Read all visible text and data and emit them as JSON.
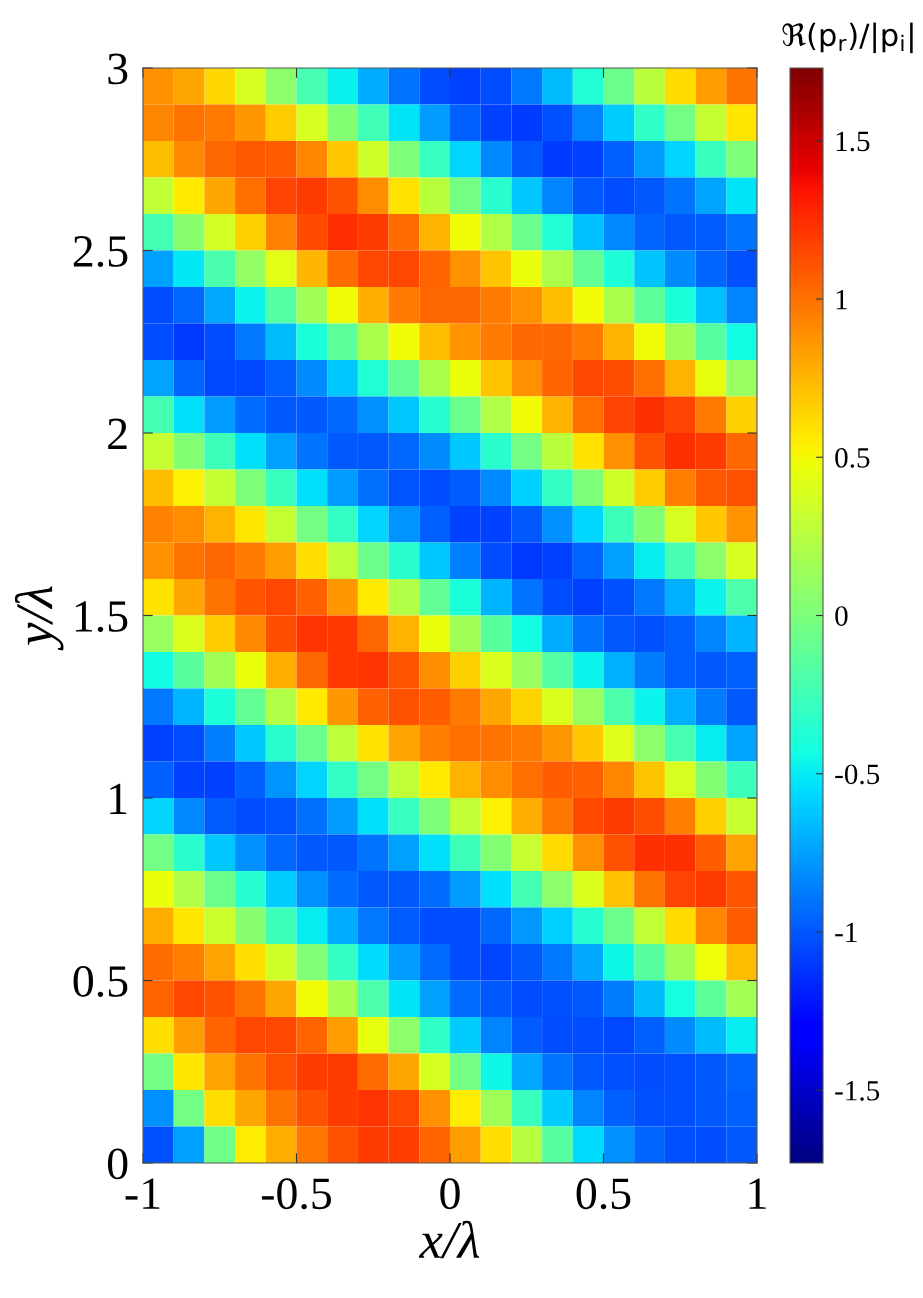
{
  "chart_data": {
    "type": "heatmap",
    "xlabel": "x/λ",
    "ylabel": "y/λ",
    "clabel": "ℜ(p$_{r}$)/|p$_{i}$|",
    "x": [
      -0.95,
      -0.85,
      -0.75,
      -0.65,
      -0.55,
      -0.45,
      -0.35,
      -0.25,
      -0.15,
      -0.05,
      0.05,
      0.15,
      0.25,
      0.35,
      0.45,
      0.55,
      0.65,
      0.75,
      0.85,
      0.95
    ],
    "y": [
      2.95,
      2.85,
      2.75,
      2.65,
      2.55,
      2.45,
      2.35,
      2.25,
      2.15,
      2.05,
      1.95,
      1.85,
      1.75,
      1.65,
      1.55,
      1.45,
      1.35,
      1.25,
      1.15,
      1.05,
      0.95,
      0.85,
      0.75,
      0.65,
      0.55,
      0.45,
      0.35,
      0.25,
      0.15,
      0.05
    ],
    "cells": [
      [
        0.89,
        0.8,
        0.63,
        0.38,
        0.08,
        -0.22,
        -0.48,
        -0.71,
        -0.9,
        -1.03,
        -1.08,
        -1.03,
        -0.88,
        -0.65,
        -0.37,
        -0.07,
        0.27,
        0.61,
        0.85,
        0.99
      ],
      [
        0.93,
        0.99,
        0.97,
        0.86,
        0.67,
        0.39,
        0.04,
        -0.25,
        -0.52,
        -0.77,
        -0.97,
        -1.08,
        -1.09,
        -1.02,
        -0.84,
        -0.6,
        -0.32,
        -0.03,
        0.3,
        0.58
      ],
      [
        0.72,
        0.91,
        1.04,
        1.09,
        1.08,
        0.92,
        0.68,
        0.35,
        0.0,
        -0.29,
        -0.58,
        -0.83,
        -1.0,
        -1.09,
        -1.07,
        -0.96,
        -0.77,
        -0.57,
        -0.28,
        0.0
      ],
      [
        0.29,
        0.56,
        0.81,
        1.01,
        1.17,
        1.2,
        1.12,
        0.9,
        0.59,
        0.27,
        -0.03,
        -0.34,
        -0.62,
        -0.85,
        -1.0,
        -1.04,
        -1.0,
        -0.9,
        -0.74,
        -0.52
      ],
      [
        -0.24,
        0.06,
        0.36,
        0.65,
        0.94,
        1.14,
        1.25,
        1.19,
        1.02,
        0.77,
        0.5,
        0.22,
        -0.07,
        -0.37,
        -0.64,
        -0.83,
        -0.95,
        -1.0,
        -0.98,
        -0.9
      ],
      [
        -0.75,
        -0.51,
        -0.21,
        0.1,
        0.43,
        0.75,
        1.02,
        1.15,
        1.15,
        1.05,
        0.89,
        0.69,
        0.47,
        0.21,
        -0.1,
        -0.39,
        -0.63,
        -0.82,
        -0.95,
        -1.02
      ],
      [
        -1.04,
        -0.94,
        -0.72,
        -0.46,
        -0.17,
        0.15,
        0.5,
        0.78,
        0.96,
        1.03,
        1.03,
        0.96,
        0.88,
        0.72,
        0.5,
        0.19,
        -0.13,
        -0.4,
        -0.64,
        -0.85
      ],
      [
        -1.04,
        -1.1,
        -1.03,
        -0.88,
        -0.66,
        -0.4,
        -0.13,
        0.19,
        0.49,
        0.72,
        0.87,
        0.96,
        1.03,
        1.03,
        0.96,
        0.77,
        0.5,
        0.16,
        -0.16,
        -0.44
      ],
      [
        -0.74,
        -0.95,
        -1.05,
        -1.05,
        -0.96,
        -0.82,
        -0.62,
        -0.37,
        -0.1,
        0.2,
        0.47,
        0.69,
        0.89,
        1.05,
        1.15,
        1.13,
        1.01,
        0.77,
        0.45,
        0.11
      ],
      [
        -0.23,
        -0.53,
        -0.77,
        -0.92,
        -1.0,
        -1.0,
        -0.94,
        -0.8,
        -0.61,
        -0.36,
        -0.07,
        0.22,
        0.5,
        0.77,
        1.01,
        1.17,
        1.24,
        1.17,
        0.96,
        0.66
      ],
      [
        0.3,
        0.04,
        -0.27,
        -0.54,
        -0.75,
        -0.9,
        -0.99,
        -0.99,
        -0.94,
        -0.82,
        -0.61,
        -0.34,
        -0.03,
        0.27,
        0.59,
        0.88,
        1.11,
        1.23,
        1.19,
        1.03
      ],
      [
        0.72,
        0.54,
        0.3,
        0.0,
        -0.28,
        -0.54,
        -0.76,
        -0.91,
        -1.01,
        -1.04,
        -0.98,
        -0.83,
        -0.59,
        -0.31,
        0.0,
        0.34,
        0.67,
        0.95,
        1.09,
        1.11
      ],
      [
        0.94,
        0.9,
        0.77,
        0.57,
        0.3,
        -0.03,
        -0.31,
        -0.57,
        -0.79,
        -0.97,
        -1.07,
        -1.08,
        -0.99,
        -0.81,
        -0.56,
        -0.26,
        0.04,
        0.39,
        0.68,
        0.87
      ],
      [
        0.89,
        1.0,
        1.03,
        0.97,
        0.84,
        0.6,
        0.28,
        -0.06,
        -0.35,
        -0.62,
        -0.86,
        -1.03,
        -1.1,
        -1.08,
        -0.95,
        -0.75,
        -0.5,
        -0.22,
        0.08,
        0.39
      ],
      [
        0.59,
        0.81,
        0.99,
        1.1,
        1.15,
        1.06,
        0.86,
        0.56,
        0.22,
        -0.1,
        -0.4,
        -0.68,
        -0.9,
        -1.04,
        -1.08,
        -1.02,
        -0.88,
        -0.69,
        -0.46,
        -0.19
      ],
      [
        0.12,
        0.4,
        0.67,
        0.91,
        1.13,
        1.22,
        1.21,
        1.04,
        0.77,
        0.47,
        0.16,
        -0.14,
        -0.44,
        -0.71,
        -0.9,
        -1.0,
        -1.02,
        -0.96,
        -0.85,
        -0.68
      ],
      [
        -0.44,
        -0.14,
        0.16,
        0.47,
        0.78,
        1.04,
        1.21,
        1.22,
        1.1,
        0.9,
        0.66,
        0.4,
        0.13,
        -0.17,
        -0.46,
        -0.7,
        -0.87,
        -0.96,
        -1.0,
        -0.97
      ],
      [
        -0.88,
        -0.68,
        -0.4,
        -0.1,
        0.22,
        0.56,
        0.86,
        1.06,
        1.12,
        1.08,
        0.97,
        0.81,
        0.64,
        0.4,
        0.11,
        -0.2,
        -0.47,
        -0.69,
        -0.87,
        -0.99
      ],
      [
        -1.08,
        -1.03,
        -0.86,
        -0.62,
        -0.35,
        -0.07,
        0.28,
        0.59,
        0.82,
        0.95,
        1.01,
        1.0,
        0.96,
        0.86,
        0.68,
        0.41,
        0.08,
        -0.22,
        -0.49,
        -0.73
      ],
      [
        -0.97,
        -1.08,
        -1.07,
        -0.97,
        -0.79,
        -0.57,
        -0.31,
        -0.03,
        0.29,
        0.56,
        0.76,
        0.9,
        1.01,
        1.07,
        1.06,
        0.93,
        0.7,
        0.39,
        0.04,
        -0.26
      ],
      [
        -0.58,
        -0.83,
        -0.98,
        -1.04,
        -1.01,
        -0.91,
        -0.76,
        -0.54,
        -0.29,
        0.0,
        0.29,
        0.54,
        0.78,
        0.98,
        1.14,
        1.19,
        1.13,
        0.95,
        0.65,
        0.32
      ],
      [
        -0.03,
        -0.34,
        -0.61,
        -0.81,
        -0.94,
        -0.99,
        -0.99,
        -0.9,
        -0.75,
        -0.54,
        -0.27,
        0.03,
        0.32,
        0.61,
        0.89,
        1.11,
        1.23,
        1.23,
        1.08,
        0.82
      ],
      [
        0.46,
        0.22,
        -0.07,
        -0.36,
        -0.6,
        -0.8,
        -0.93,
        -1.0,
        -1.0,
        -0.93,
        -0.77,
        -0.53,
        -0.24,
        0.07,
        0.4,
        0.71,
        0.99,
        1.17,
        1.2,
        1.1
      ],
      [
        0.78,
        0.58,
        0.33,
        0.05,
        -0.27,
        -0.5,
        -0.71,
        -0.88,
        -0.98,
        -1.04,
        -1.03,
        -0.94,
        -0.78,
        -0.59,
        -0.36,
        -0.07,
        0.29,
        0.62,
        0.92,
        1.07
      ],
      [
        1.02,
        0.95,
        0.82,
        0.6,
        0.34,
        0.02,
        -0.3,
        -0.55,
        -0.77,
        -0.93,
        -1.03,
        -1.06,
        -1.0,
        -0.89,
        -0.72,
        -0.45,
        -0.16,
        0.16,
        0.48,
        0.72
      ],
      [
        1.05,
        1.15,
        1.12,
        1.0,
        0.8,
        0.5,
        0.18,
        -0.2,
        -0.52,
        -0.75,
        -0.92,
        -1.0,
        -1.03,
        -1.02,
        -1.0,
        -0.87,
        -0.66,
        -0.42,
        -0.13,
        0.17
      ],
      [
        0.6,
        0.85,
        1.05,
        1.15,
        1.15,
        1.05,
        0.85,
        0.45,
        0.08,
        -0.32,
        -0.6,
        -0.85,
        -0.98,
        -1.03,
        -1.03,
        -1.05,
        -0.96,
        -0.82,
        -0.66,
        -0.5
      ],
      [
        -0.04,
        0.58,
        0.82,
        1.0,
        1.12,
        1.2,
        1.2,
        1.02,
        0.8,
        0.38,
        -0.03,
        -0.45,
        -0.72,
        -0.9,
        -1.0,
        -1.02,
        -1.03,
        -1.02,
        -1.0,
        -0.95
      ],
      [
        -0.8,
        -0.04,
        0.6,
        0.8,
        1.0,
        1.12,
        1.2,
        1.22,
        1.15,
        0.88,
        0.55,
        0.15,
        -0.28,
        -0.6,
        -0.85,
        -0.97,
        -1.02,
        -1.02,
        -1.0,
        -0.97
      ],
      [
        -1.02,
        -0.75,
        -0.05,
        0.55,
        0.78,
        0.98,
        1.12,
        1.2,
        1.18,
        1.05,
        0.85,
        0.6,
        0.25,
        -0.16,
        -0.55,
        -0.8,
        -0.95,
        -1.02,
        -1.03,
        -1.0
      ]
    ],
    "xlim": [
      -1,
      1
    ],
    "xticks": [
      -1,
      -0.5,
      0,
      0.5,
      1
    ],
    "ylim": [
      0,
      3
    ],
    "yticks": [
      0,
      0.5,
      1,
      1.5,
      2,
      2.5,
      3
    ],
    "clim": [
      -1.73,
      1.73
    ],
    "cticks": [
      -1.5,
      -1,
      -0.5,
      0,
      0.5,
      1,
      1.5
    ]
  }
}
